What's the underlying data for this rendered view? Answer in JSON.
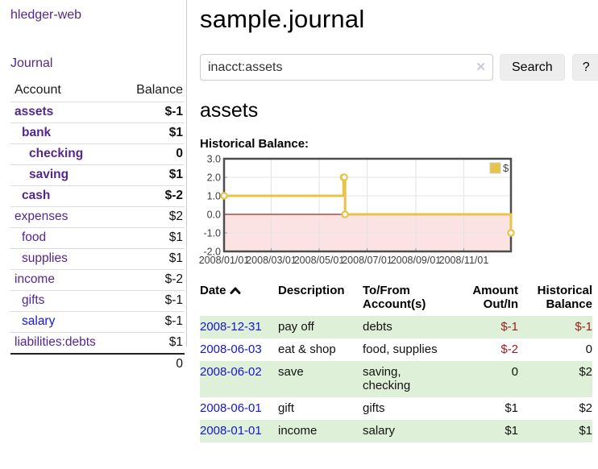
{
  "sidebar": {
    "brand": "hledger-web",
    "journal_label": "Journal",
    "accounts_table": {
      "headers": {
        "account": "Account",
        "balance": "Balance"
      },
      "rows": [
        {
          "account": "assets",
          "balance": "$-1",
          "indent": 0,
          "bold": true,
          "account_style": "purple",
          "balance_style": "neg-strong"
        },
        {
          "account": "bank",
          "balance": "$1",
          "indent": 1,
          "bold": true,
          "account_style": "purple",
          "balance_style": "plain"
        },
        {
          "account": "checking",
          "balance": "0",
          "indent": 2,
          "bold": true,
          "account_style": "purple",
          "balance_style": "plain"
        },
        {
          "account": "saving",
          "balance": "$1",
          "indent": 2,
          "bold": true,
          "account_style": "purple",
          "balance_style": "plain"
        },
        {
          "account": "cash",
          "balance": "$-2",
          "indent": 1,
          "bold": true,
          "account_style": "purple",
          "balance_style": "neg-strong"
        },
        {
          "account": "expenses",
          "balance": "$2",
          "indent": 0,
          "bold": false,
          "account_style": "purple",
          "balance_style": "plain"
        },
        {
          "account": "food",
          "balance": "$1",
          "indent": 1,
          "bold": false,
          "account_style": "purple",
          "balance_style": "plain"
        },
        {
          "account": "supplies",
          "balance": "$1",
          "indent": 1,
          "bold": false,
          "account_style": "purple",
          "balance_style": "plain"
        },
        {
          "account": "income",
          "balance": "$-2",
          "indent": 0,
          "bold": false,
          "account_style": "purple",
          "balance_style": "neg-soft"
        },
        {
          "account": "gifts",
          "balance": "$-1",
          "indent": 1,
          "bold": false,
          "account_style": "purple",
          "balance_style": "neg-soft"
        },
        {
          "account": "salary",
          "balance": "$-1",
          "indent": 1,
          "bold": false,
          "account_style": "blue",
          "balance_style": "neg-soft"
        },
        {
          "account": "liabilities:debts",
          "balance": "$1",
          "indent": 0,
          "bold": false,
          "account_style": "purple",
          "balance_style": "plain"
        }
      ],
      "total": "0"
    }
  },
  "header": {
    "title": "sample.journal"
  },
  "search": {
    "query": "inacct:assets",
    "clear_icon": "✕",
    "search_label": "Search",
    "help_label": "?"
  },
  "account_page": {
    "title": "assets",
    "chart_label": "Historical Balance:"
  },
  "chart_data": {
    "type": "line",
    "title": "Historical Balance",
    "step": true,
    "legend": {
      "label": "$",
      "position": "top-right"
    },
    "xrange": [
      "2008-01-01",
      "2008-12-31"
    ],
    "ylim": [
      -2,
      3
    ],
    "yticks": [
      "3.0",
      "2.0",
      "1.0",
      "0.0",
      "-1.0",
      "-2.0"
    ],
    "xticks": [
      "2008/01/01",
      "2008/03/01",
      "2008/05/01",
      "2008/07/01",
      "2008/09/01",
      "2008/11/01"
    ],
    "series": [
      {
        "name": "$",
        "color": "#E9C347",
        "points": [
          {
            "date": "2008-01-01",
            "value": 1
          },
          {
            "date": "2008-06-01",
            "value": 2
          },
          {
            "date": "2008-06-02",
            "value": 2
          },
          {
            "date": "2008-06-03",
            "value": 0
          },
          {
            "date": "2008-12-31",
            "value": -1
          }
        ]
      }
    ],
    "zero_line_color": "#b22222",
    "negative_region_color": "rgba(235,70,70,0.15)"
  },
  "register_table": {
    "headers": {
      "date": "Date",
      "description": "Description",
      "accounts": "To/From\nAccount(s)",
      "amount": "Amount\nOut/In",
      "balance": "Historical\nBalance"
    },
    "rows": [
      {
        "date": "2008-12-31",
        "description": "pay off",
        "accounts": "debts",
        "amount": "$-1",
        "amount_negative": true,
        "balance": "$-1",
        "balance_negative": true
      },
      {
        "date": "2008-06-03",
        "description": "eat & shop",
        "accounts": "food, supplies",
        "amount": "$-2",
        "amount_negative": true,
        "balance": "0",
        "balance_negative": false
      },
      {
        "date": "2008-06-02",
        "description": "save",
        "accounts": "saving,\nchecking",
        "amount": "0",
        "amount_negative": false,
        "balance": "$2",
        "balance_negative": false
      },
      {
        "date": "2008-06-01",
        "description": "gift",
        "accounts": "gifts",
        "amount": "$1",
        "amount_negative": false,
        "balance": "$2",
        "balance_negative": false
      },
      {
        "date": "2008-01-01",
        "description": "income",
        "accounts": "salary",
        "amount": "$1",
        "amount_negative": false,
        "balance": "$1",
        "balance_negative": false
      }
    ]
  },
  "colors": {
    "link_purple": "#54278e",
    "link_blue": "#1616d1",
    "negative_strong": "#9c1b1b",
    "negative_soft": "#c4777f",
    "row_stripe_green": "#dff0d8",
    "chart_line": "#E9C347",
    "chart_border": "#4d4d4d",
    "gridline": "#e4e4e4"
  }
}
